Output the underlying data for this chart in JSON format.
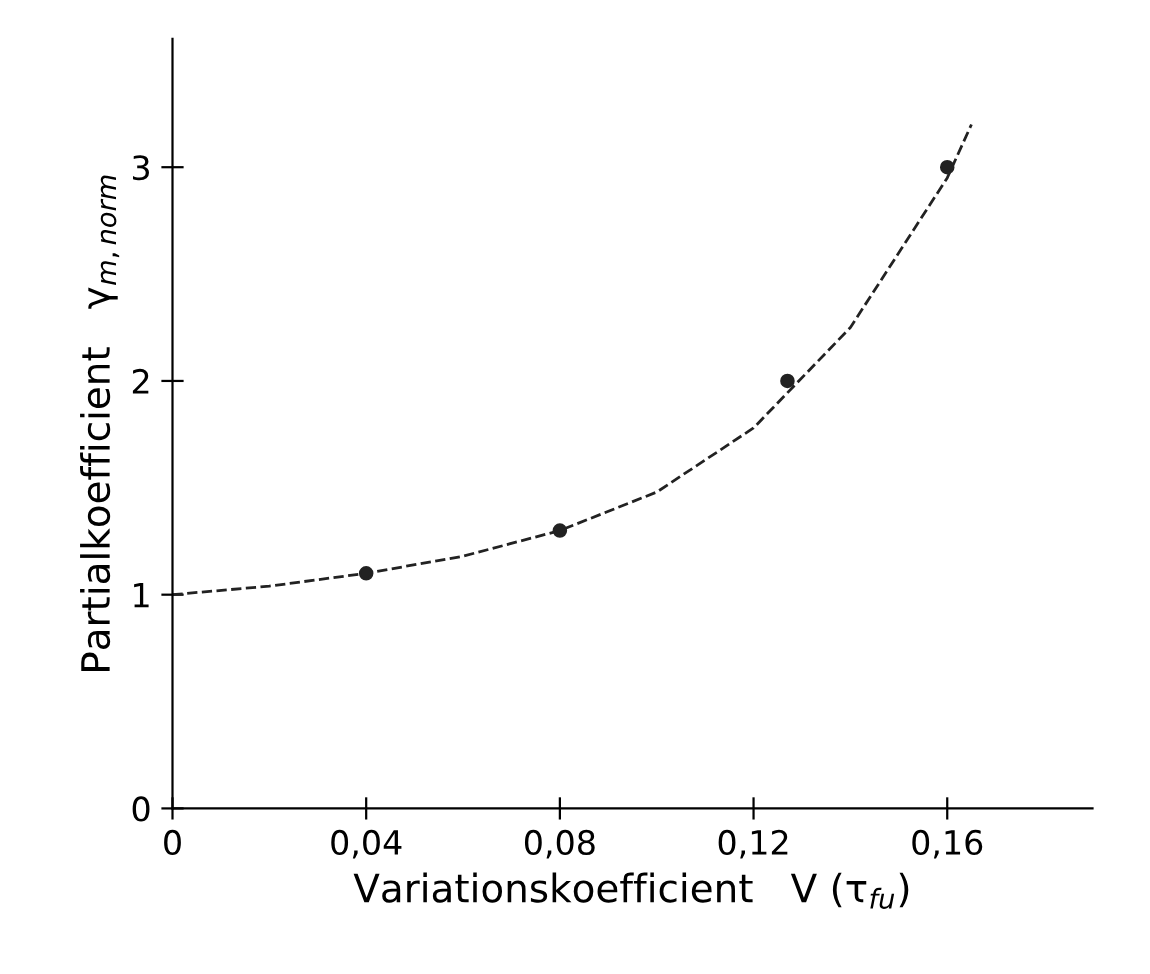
{
  "chart_data": {
    "type": "scatter",
    "xlabel": "Variationskoefficient   V (τ$_{fu}$)",
    "ylabel": "Partialkoefficient   γ$_{m,norm}$",
    "xlim": [
      0,
      0.19
    ],
    "ylim": [
      0,
      3.6
    ],
    "xticks": [
      0,
      {
        "value": 0.04,
        "label": "0,04"
      },
      {
        "value": 0.08,
        "label": "0,08"
      },
      {
        "value": 0.12,
        "label": "0,12"
      },
      {
        "value": 0.16,
        "label": "0,16"
      }
    ],
    "yticks": [
      0,
      1,
      2,
      3
    ],
    "grid": false,
    "legend": false,
    "series": [
      {
        "color": "#222222",
        "marker": "circle",
        "x": [
          0.04,
          0.08,
          0.127,
          0.16
        ],
        "values": [
          1.1,
          1.3,
          2.0,
          3.0
        ]
      },
      {
        "type": "line",
        "color": "#222222",
        "line_style": "dashed",
        "marker": "none",
        "x": [
          0,
          0.02,
          0.04,
          0.06,
          0.08,
          0.1,
          0.12,
          0.14,
          0.16,
          0.165
        ],
        "values": [
          1.0,
          1.04,
          1.1,
          1.18,
          1.3,
          1.48,
          1.78,
          2.25,
          2.95,
          3.2
        ]
      }
    ]
  }
}
